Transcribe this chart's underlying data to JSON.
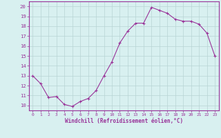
{
  "x": [
    0,
    1,
    2,
    3,
    4,
    5,
    6,
    7,
    8,
    9,
    10,
    11,
    12,
    13,
    14,
    15,
    16,
    17,
    18,
    19,
    20,
    21,
    22,
    23
  ],
  "y": [
    13.0,
    12.2,
    10.8,
    10.9,
    10.1,
    9.9,
    10.4,
    10.7,
    11.5,
    13.0,
    14.4,
    16.3,
    17.5,
    18.3,
    18.3,
    19.9,
    19.6,
    19.3,
    18.7,
    18.5,
    18.5,
    18.2,
    17.3,
    15.0
  ],
  "line_color": "#993399",
  "marker": "+",
  "marker_size": 3.5,
  "marker_lw": 0.8,
  "bg_color": "#d8f0f0",
  "grid_color": "#b8d4d4",
  "xlabel": "Windchill (Refroidissement éolien,°C)",
  "xlim": [
    -0.5,
    23.5
  ],
  "ylim": [
    9.5,
    20.5
  ],
  "yticks": [
    10,
    11,
    12,
    13,
    14,
    15,
    16,
    17,
    18,
    19,
    20
  ],
  "xticks": [
    0,
    1,
    2,
    3,
    4,
    5,
    6,
    7,
    8,
    9,
    10,
    11,
    12,
    13,
    14,
    15,
    16,
    17,
    18,
    19,
    20,
    21,
    22,
    23
  ],
  "tick_color": "#993399",
  "label_color": "#993399",
  "spine_color": "#993399",
  "xlabel_fontsize": 5.5,
  "ytick_fontsize": 5.2,
  "xtick_fontsize": 4.5
}
